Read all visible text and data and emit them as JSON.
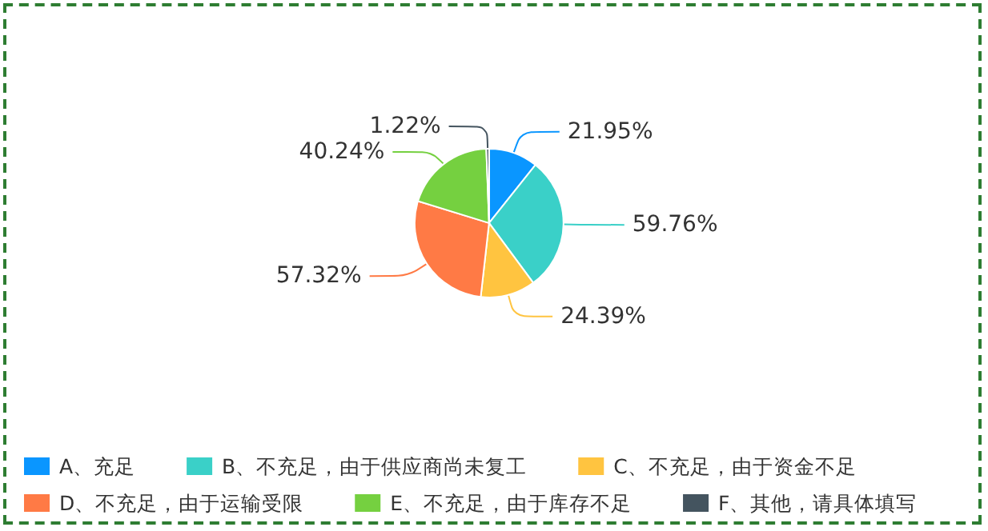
{
  "chart_data": {
    "type": "pie",
    "categories": [
      "A、充足",
      "B、不充足，由于供应商尚未复工",
      "C、不充足，由于资金不足",
      "D、不充足，由于运输受限",
      "E、不充足，由于库存不足",
      "F、其他，请具体填写"
    ],
    "values": [
      21.95,
      59.76,
      24.39,
      57.32,
      40.24,
      1.22
    ],
    "value_labels": [
      "21.95%",
      "59.76%",
      "24.39%",
      "57.32%",
      "40.24%",
      "1.22%"
    ],
    "colors": [
      "#0a96ff",
      "#3ad0c8",
      "#ffc440",
      "#ff7a45",
      "#75d040",
      "#44545f"
    ],
    "legend": "bottom"
  }
}
